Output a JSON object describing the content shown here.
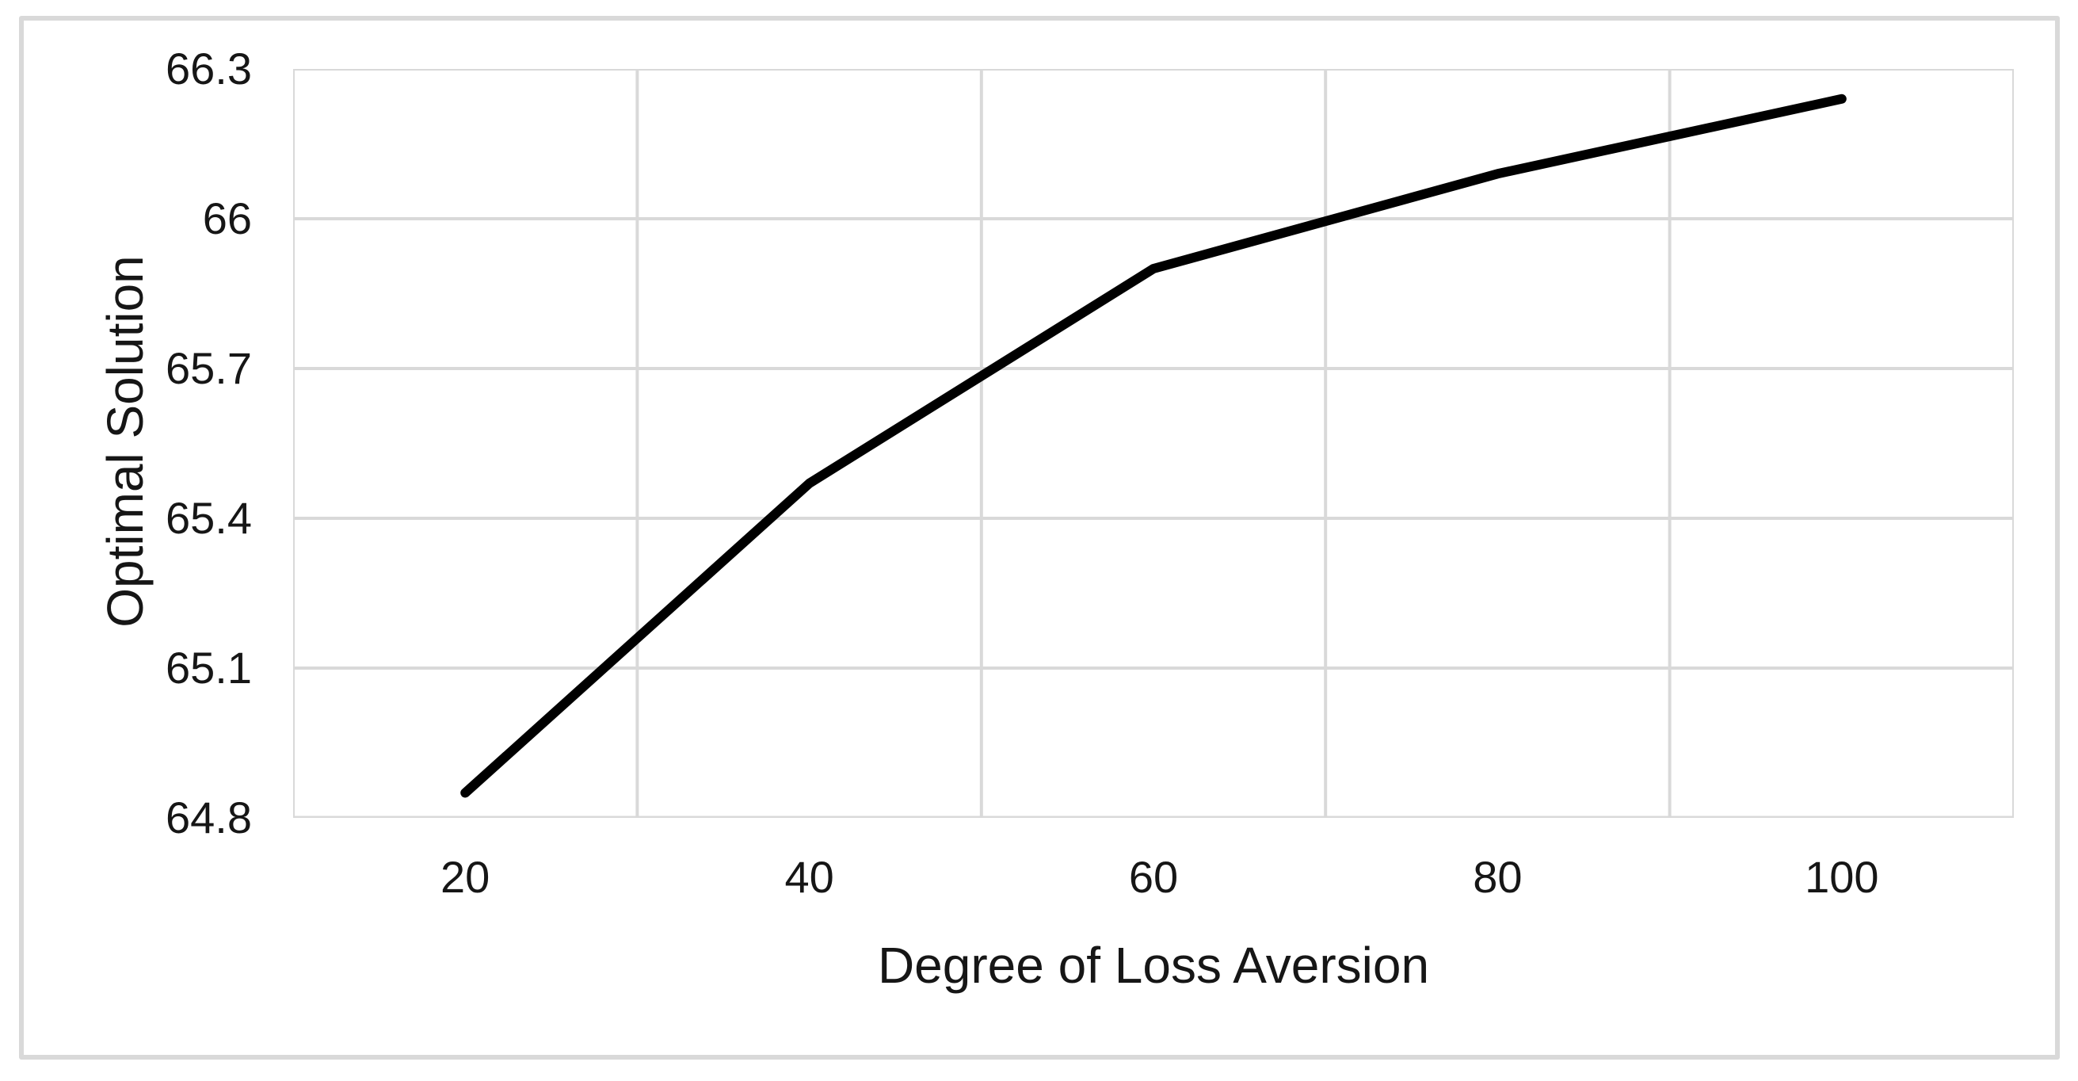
{
  "chart_data": {
    "type": "line",
    "title": "",
    "xlabel": "Degree of Loss Aversion",
    "ylabel": "Optimal Solution",
    "categories": [
      20,
      40,
      60,
      80,
      100
    ],
    "xtick_labels": [
      "20",
      "40",
      "60",
      "80",
      "100"
    ],
    "series": [
      {
        "name": "Optimal Solution",
        "values": [
          64.85,
          65.47,
          65.9,
          66.09,
          66.24
        ]
      }
    ],
    "ylim": [
      64.8,
      66.3
    ],
    "yticks": [
      64.8,
      65.1,
      65.4,
      65.7,
      66.0,
      66.3
    ],
    "ytick_labels": [
      "64.8",
      "65.1",
      "65.4",
      "65.7",
      "66",
      "66.3"
    ],
    "grid": true,
    "legend_position": "none",
    "colors": {
      "line": "#000000",
      "grid": "#d9d9d9",
      "frame_border": "#d9d9d9",
      "text": "#161616",
      "background": "#ffffff"
    }
  }
}
